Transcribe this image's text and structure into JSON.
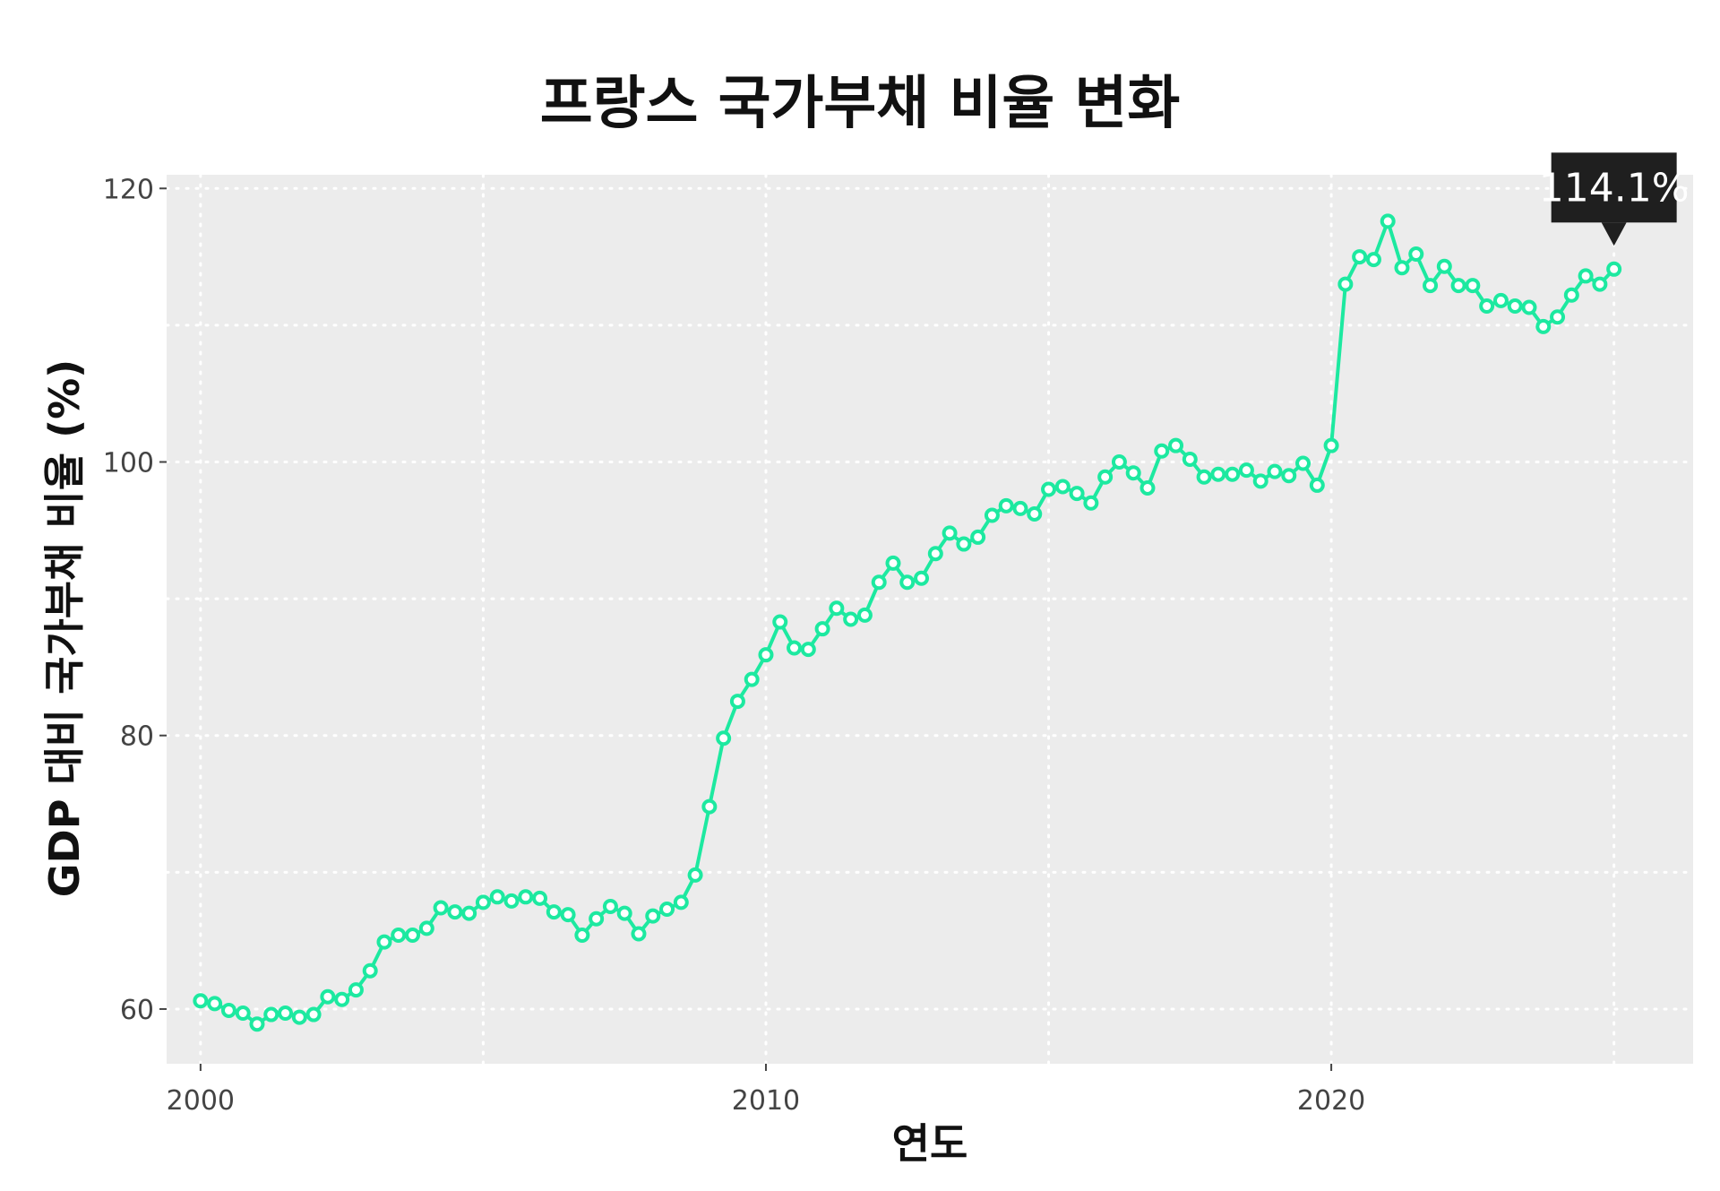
{
  "chart_data": {
    "type": "line",
    "title": "프랑스 국가부채 비율 변화",
    "xlabel": "연도",
    "ylabel": "GDP 대비 국가부채 비율 (%)",
    "xlim": [
      1999.4,
      2026.4
    ],
    "ylim": [
      56,
      121
    ],
    "x_ticks": [
      2000,
      2010,
      2020
    ],
    "x_tick_labels": [
      "2000",
      "2010",
      "2020"
    ],
    "y_ticks": [
      60,
      80,
      100,
      120
    ],
    "y_tick_labels": [
      "60",
      "80",
      "100",
      "120"
    ],
    "grid": true,
    "line_color": "#1de9a0",
    "marker_fill": "#ffffff",
    "panel_background": "#ececec",
    "series": [
      {
        "x": [
          2000.0,
          2000.25,
          2000.5,
          2000.75,
          2001.0,
          2001.25,
          2001.5,
          2001.75,
          2002.0,
          2002.25,
          2002.5,
          2002.75,
          2003.0,
          2003.25,
          2003.5,
          2003.75,
          2004.0,
          2004.25,
          2004.5,
          2004.75,
          2005.0,
          2005.25,
          2005.5,
          2005.75,
          2006.0,
          2006.25,
          2006.5,
          2006.75,
          2007.0,
          2007.25,
          2007.5,
          2007.75,
          2008.0,
          2008.25,
          2008.5,
          2008.75,
          2009.0,
          2009.25,
          2009.5,
          2009.75,
          2010.0,
          2010.25,
          2010.5,
          2010.75,
          2011.0,
          2011.25,
          2011.5,
          2011.75,
          2012.0,
          2012.25,
          2012.5,
          2012.75,
          2013.0,
          2013.25,
          2013.5,
          2013.75,
          2014.0,
          2014.25,
          2014.5,
          2014.75,
          2015.0,
          2015.25,
          2015.5,
          2015.75,
          2016.0,
          2016.25,
          2016.5,
          2016.75,
          2017.0,
          2017.25,
          2017.5,
          2017.75,
          2018.0,
          2018.25,
          2018.5,
          2018.75,
          2019.0,
          2019.25,
          2019.5,
          2019.75,
          2020.0,
          2020.25,
          2020.5,
          2020.75,
          2021.0,
          2021.25,
          2021.5,
          2021.75,
          2022.0,
          2022.25,
          2022.5,
          2022.75,
          2023.0,
          2023.25,
          2023.5,
          2023.75,
          2024.0,
          2024.25,
          2024.5,
          2024.75,
          2025.0
        ],
        "values": [
          60.6,
          60.4,
          59.9,
          59.7,
          58.9,
          59.6,
          59.7,
          59.4,
          59.6,
          60.9,
          60.7,
          61.4,
          62.8,
          64.9,
          65.4,
          65.4,
          65.9,
          67.4,
          67.1,
          67.0,
          67.8,
          68.2,
          67.9,
          68.2,
          68.1,
          67.1,
          66.9,
          65.4,
          66.6,
          67.5,
          67.0,
          65.5,
          66.8,
          67.3,
          67.8,
          69.8,
          74.8,
          79.8,
          82.5,
          84.1,
          85.9,
          88.3,
          86.4,
          86.3,
          87.8,
          89.3,
          88.5,
          88.8,
          91.2,
          92.6,
          91.2,
          91.5,
          93.3,
          94.8,
          94.0,
          94.5,
          96.1,
          96.8,
          96.6,
          96.2,
          98.0,
          98.2,
          97.7,
          97.0,
          98.9,
          100.0,
          99.2,
          98.1,
          100.8,
          101.2,
          100.2,
          98.9,
          99.1,
          99.1,
          99.4,
          98.6,
          99.3,
          99.0,
          99.9,
          98.3,
          101.2,
          113.0,
          115.0,
          114.8,
          117.6,
          114.2,
          115.2,
          112.9,
          114.3,
          112.9,
          112.9,
          111.4,
          111.8,
          111.4,
          111.3,
          109.9,
          110.6,
          112.2,
          113.6,
          113.0,
          114.1
        ]
      }
    ],
    "annotations": [
      {
        "label": "114.1%",
        "x": 2025.0,
        "y": 114.1
      }
    ]
  }
}
